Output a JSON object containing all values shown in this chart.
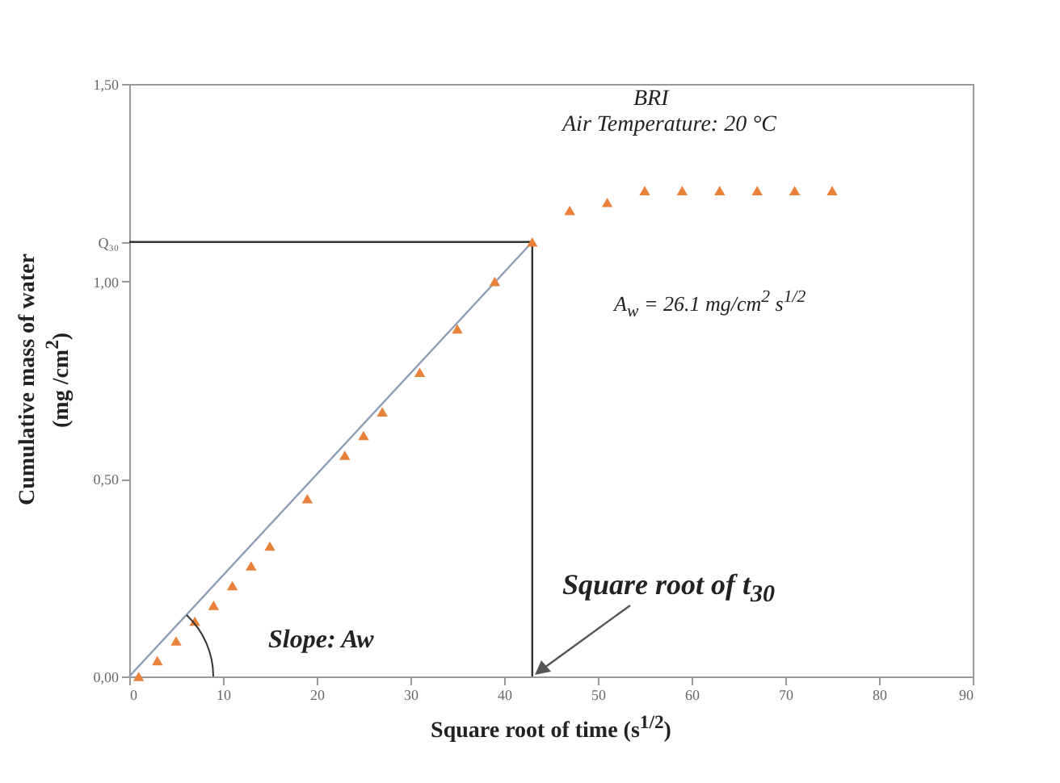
{
  "chart_data": {
    "type": "scatter",
    "xlabel": "Square root of time (s$^{1/2}$)",
    "ylabel": "Cumulative mass of water\n(mg /cm$^{2}$)",
    "annotations": [
      "BRI",
      "Air Temperature: 20 °C",
      "A$_{w}$ = 26.1 mg/cm$^{2}$ s$^{1/2}$",
      "Slope: Aw",
      "Square root of t$_{30}$"
    ],
    "marker": "triangle",
    "grid": false,
    "xlim": [
      0,
      90
    ],
    "xticks": [
      0,
      10,
      20,
      30,
      40,
      50,
      60,
      70,
      80,
      90
    ],
    "ylim": [
      0,
      1.5
    ],
    "yticks": [
      {
        "value": 0,
        "label": "0,00"
      },
      {
        "value": 0.5,
        "label": "0,50"
      },
      {
        "value": 1,
        "label": "1,00"
      },
      {
        "value": 1.1,
        "label": "Q₃₀"
      },
      {
        "value": 1.5,
        "label": "1,50"
      }
    ],
    "series": [
      {
        "type": "line",
        "marker": "none",
        "color": "#8c9db5",
        "x": [
          0,
          43
        ],
        "values": [
          0,
          1.1
        ]
      },
      {
        "type": "line",
        "marker": "none",
        "color": "#333333",
        "x": [
          0,
          43,
          43
        ],
        "values": [
          1.1,
          1.1,
          0
        ]
      },
      {
        "color": "#e8813a",
        "x": [
          1,
          3,
          5,
          7,
          9,
          11,
          13,
          15,
          19,
          23,
          25,
          27,
          31,
          35,
          39,
          43,
          47,
          51,
          55,
          59,
          63,
          67,
          71,
          75
        ],
        "values": [
          0,
          0.04,
          0.09,
          0.14,
          0.18,
          0.23,
          0.28,
          0.33,
          0.45,
          0.56,
          0.61,
          0.67,
          0.77,
          0.88,
          1.0,
          1.1,
          1.18,
          1.2,
          1.23,
          1.23,
          1.23,
          1.23,
          1.23,
          1.23
        ]
      }
    ]
  }
}
